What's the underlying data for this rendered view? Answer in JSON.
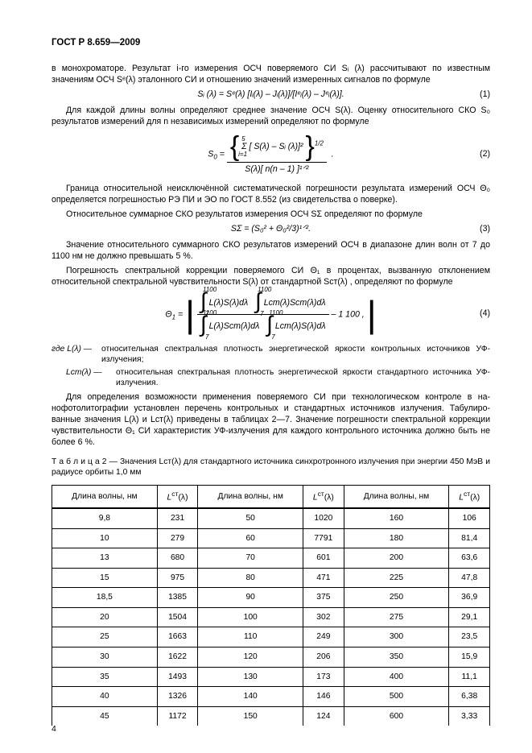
{
  "header": "ГОСТ Р 8.659—2009",
  "p1": "в монохроматоре. Результат i-го измерения ОСЧ поверяемого СИ Sᵢ (λ) рассчитывают по известным значениям ОСЧ Sᵉ(λ) эталонного СИ и отношению значений измеренных сигналов по формуле",
  "f1": "Sᵢ (λ) = Sᵉ(λ) [Iᵢ(λ) – Jᵢ(λ)]/[Iᵉᵢ(λ) – Jᵉᵢ(λ)].",
  "eq1num": "(1)",
  "p2": "Для каждой длины волны определяют среднее значение ОСЧ S(λ). Оценку относительного СКО S₀ результатов измерений для n независимых измерений определяют по формуле",
  "f2": {
    "top_sum": "Σ [ S(λ) – Sᵢ (λ)]²",
    "top_pow": "1/2",
    "bottom": "S(λ)[ n(n – 1) ]¹ᐟ²"
  },
  "eq2num": "(2)",
  "p3": "Граница относительной неисключённой систематической погрешности результата измерений ОСЧ Θ₀ определяется погрешностью РЭ ПИ и ЭО по ГОСТ 8.552 (из свидетельства о поверке).",
  "p4": "Относительное суммарное СКО результатов измерения ОСЧ SΣ определяют по формуле",
  "f3": "SΣ = (S₀² + Θ₀²/3)¹ᐟ².",
  "eq3num": "(3)",
  "p5": "Значение относительного суммарного СКО результатов измерений ОСЧ в диапазоне длин волн от 7 до 1100 нм не должно превышать 5 %.",
  "p6": "Погрешность спектральной коррекции поверяемого СИ Θ₁ в процентах, вызванную отклонением относительной спектральной чувствительности S(λ) от стандартной Sст(λ) , определяют по формуле",
  "f4": {
    "tl": "L(λ)S(λ)dλ",
    "tr": "Lст(λ)Sст(λ)dλ",
    "bl": "L(λ)Sст(λ)dλ",
    "br": "Lст(λ)S(λ)dλ",
    "lim_top": "1100",
    "lim_bot": "7",
    "tail": " – 1  100 ,"
  },
  "eq4num": "(4)",
  "wherelead": "где",
  "where1lab": "L(λ) —",
  "where1": "относительная спектральная плотность энергетической яркости контрольных источников УФ-излучения;",
  "where2lab": "Lст(λ) —",
  "where2": "относительная спектральная плотность энергетической яркости стандартного источника УФ-излучения.",
  "p7": "Для определения возможности применения поверяемого СИ при технологическом контроле в на­нофотолитографии установлен перечень контрольных и стандартных источников излучения. Табулиро­ванные значения L(λ) и Lст(λ) приведены в таблицах 2—7. Значение погрешности спектральной коррек­ции чувствительности Θ₁ СИ характеристик УФ-излучения для каждого контрольного источника должно быть не более 6 %.",
  "tabcap": "Т а б л и ц а   2 — Значения Lст(λ) для стандартного источника синхротронного излучения при энергии 450 МэВ и радиусе орбиты 1,0 мм",
  "th": [
    "Длина волны, нм",
    "Lст(λ)",
    "Длина волны, нм",
    "Lст(λ)",
    "Длина волны, нм",
    "Lст(λ)"
  ],
  "rows": [
    [
      "9,8",
      "231",
      "50",
      "1020",
      "160",
      "106"
    ],
    [
      "10",
      "279",
      "60",
      "7791",
      "180",
      "81,4"
    ],
    [
      "13",
      "680",
      "70",
      "601",
      "200",
      "63,6"
    ],
    [
      "15",
      "975",
      "80",
      "471",
      "225",
      "47,8"
    ],
    [
      "18,5",
      "1385",
      "90",
      "375",
      "250",
      "36,9"
    ],
    [
      "20",
      "1504",
      "100",
      "302",
      "275",
      "29,1"
    ],
    [
      "25",
      "1663",
      "110",
      "249",
      "300",
      "23,5"
    ],
    [
      "30",
      "1622",
      "120",
      "206",
      "350",
      "15,9"
    ],
    [
      "35",
      "1493",
      "130",
      "173",
      "400",
      "11,1"
    ],
    [
      "40",
      "1326",
      "140",
      "146",
      "500",
      "6,38"
    ],
    [
      "45",
      "1172",
      "150",
      "124",
      "600",
      "3,33"
    ]
  ],
  "pagenum": "4"
}
